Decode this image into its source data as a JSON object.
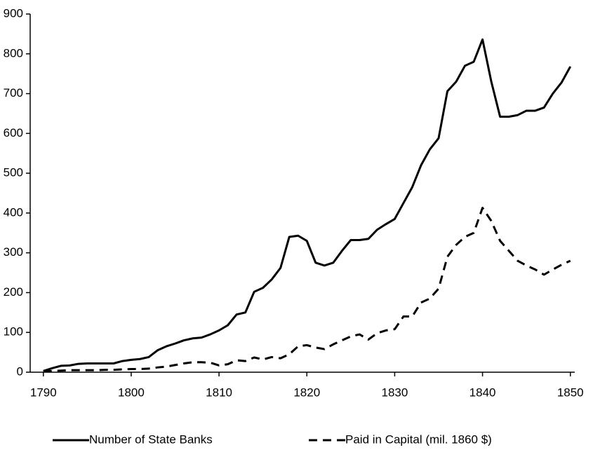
{
  "chart_data": {
    "type": "line",
    "x": [
      1790,
      1791,
      1792,
      1793,
      1794,
      1795,
      1796,
      1797,
      1798,
      1799,
      1800,
      1801,
      1802,
      1803,
      1804,
      1805,
      1806,
      1807,
      1808,
      1809,
      1810,
      1811,
      1812,
      1813,
      1814,
      1815,
      1816,
      1817,
      1818,
      1819,
      1820,
      1821,
      1822,
      1823,
      1824,
      1825,
      1826,
      1827,
      1828,
      1829,
      1830,
      1831,
      1832,
      1833,
      1834,
      1835,
      1836,
      1837,
      1838,
      1839,
      1840,
      1841,
      1842,
      1843,
      1844,
      1845,
      1846,
      1847,
      1848,
      1849,
      1850
    ],
    "series": [
      {
        "name": "Number of State Banks",
        "color": "#000000",
        "dash": "solid",
        "values": [
          3,
          10,
          16,
          17,
          21,
          22,
          22,
          22,
          22,
          28,
          31,
          33,
          38,
          55,
          65,
          72,
          80,
          85,
          87,
          95,
          105,
          118,
          145,
          150,
          202,
          212,
          233,
          262,
          340,
          343,
          330,
          275,
          268,
          275,
          305,
          332,
          332,
          335,
          358,
          372,
          385,
          425,
          465,
          520,
          560,
          588,
          706,
          730,
          770,
          780,
          836,
          730,
          642,
          642,
          646,
          657,
          657,
          665,
          700,
          728,
          768
        ]
      },
      {
        "name": "Paid in Capital (mil. 1860 $)",
        "color": "#000000",
        "dash": "dashed",
        "values": [
          2,
          3,
          4,
          5,
          5,
          5,
          5,
          6,
          6,
          7,
          8,
          8,
          9,
          12,
          14,
          18,
          22,
          25,
          25,
          24,
          17,
          20,
          30,
          28,
          37,
          32,
          38,
          35,
          45,
          65,
          68,
          62,
          58,
          70,
          80,
          90,
          95,
          82,
          98,
          105,
          108,
          140,
          140,
          175,
          185,
          210,
          290,
          320,
          340,
          350,
          413,
          380,
          330,
          305,
          280,
          268,
          258,
          245,
          258,
          270,
          280
        ]
      }
    ],
    "xlim": [
      1788.5,
      1850.5
    ],
    "xticks": [
      1790,
      1800,
      1810,
      1820,
      1830,
      1840,
      1850
    ],
    "ylim": [
      0,
      900
    ],
    "yticks": [
      0,
      100,
      200,
      300,
      400,
      500,
      600,
      700,
      800,
      900
    ],
    "grid": false,
    "legend": "bottom"
  }
}
